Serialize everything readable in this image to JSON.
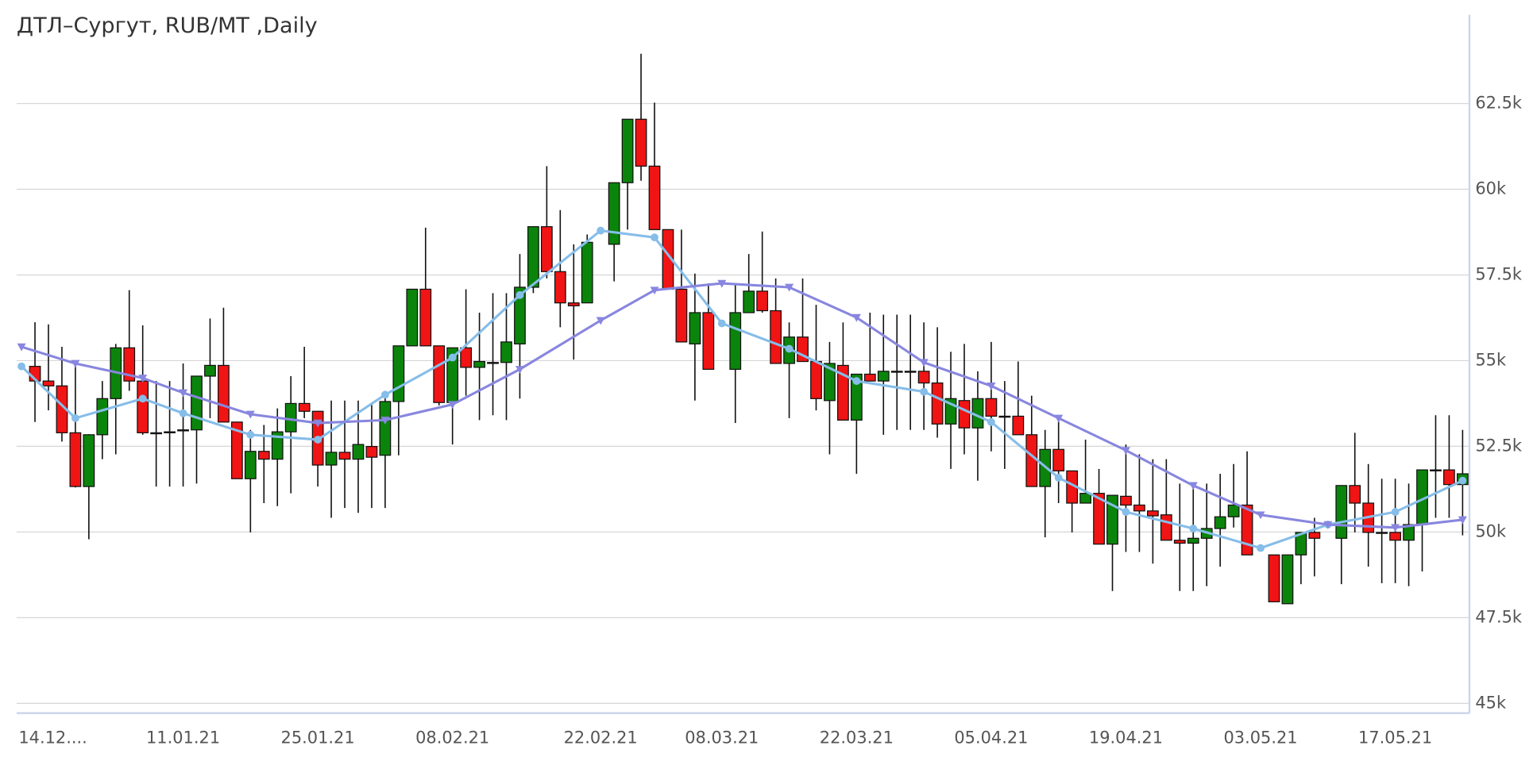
{
  "chart_data": {
    "type": "candlestick",
    "title": "ДТЛ–Сургут, RUB/MT ,Daily",
    "categories": [
      "14.12....",
      null,
      null,
      null,
      null,
      null,
      null,
      null,
      null,
      null,
      null,
      null,
      "11.01.21",
      null,
      null,
      null,
      null,
      null,
      null,
      null,
      null,
      null,
      "25.01.21",
      null,
      null,
      null,
      null,
      null,
      null,
      null,
      null,
      null,
      "08.02.21",
      null,
      null,
      null,
      null,
      null,
      null,
      null,
      null,
      null,
      null,
      "22.02.21",
      null,
      null,
      null,
      null,
      null,
      null,
      null,
      null,
      "08.03.21",
      null,
      null,
      null,
      null,
      null,
      null,
      null,
      null,
      null,
      "22.03.21",
      null,
      null,
      null,
      null,
      null,
      null,
      null,
      null,
      null,
      "05.04.21",
      null,
      null,
      null,
      null,
      null,
      null,
      null,
      null,
      null,
      "19.04.21",
      null,
      null,
      null,
      null,
      null,
      null,
      null,
      null,
      null,
      "03.05.21",
      null,
      null,
      null,
      null,
      null,
      null,
      null,
      null,
      null,
      "17.05.21",
      null,
      null,
      null,
      null,
      null
    ],
    "ylim": [
      44715,
      65092
    ],
    "yticks": [
      {
        "value": 45000,
        "label": "45k"
      },
      {
        "value": 47500,
        "label": "47.5k"
      },
      {
        "value": 50000,
        "label": "50k"
      },
      {
        "value": 52500,
        "label": "52.5k"
      },
      {
        "value": 55000,
        "label": "55k"
      },
      {
        "value": 57500,
        "label": "57.5k"
      },
      {
        "value": 60000,
        "label": "60k"
      },
      {
        "value": 62500,
        "label": "62.5k"
      }
    ],
    "grid": true,
    "series": [
      {
        "type": "candlestick",
        "up_color": "#0b840b",
        "down_color": "#f01414",
        "open": [
          null,
          54833,
          54405,
          54263,
          52895,
          51327,
          52838,
          53892,
          55374,
          54405,
          52895,
          52923,
          52980,
          52980,
          54548,
          54861,
          53208,
          51555,
          52353,
          52125,
          52923,
          53750,
          53522,
          51954,
          52325,
          52125,
          52496,
          52239,
          53807,
          55431,
          57084,
          55431,
          53778,
          55374,
          54804,
          54947,
          54947,
          55488,
          57141,
          58908,
          57597,
          56685,
          56685,
          null,
          58395,
          60191,
          62043,
          60675,
          58823,
          57084,
          55488,
          56400,
          null,
          54747,
          56400,
          57027,
          56457,
          54918,
          55688,
          54975,
          53835,
          54861,
          53265,
          54605,
          54405,
          54690,
          54690,
          54690,
          54348,
          53151,
          53835,
          53037,
          53892,
          53379,
          53379,
          52838,
          51327,
          52410,
          51783,
          50843,
          51128,
          49646,
          51042,
          50786,
          50615,
          50501,
          49760,
          49674,
          49817,
          50102,
          50444,
          50786,
          null,
          49332,
          47907,
          49332,
          49988,
          null,
          49817,
          51356,
          50843,
          49988,
          49988,
          49760,
          50216,
          51812,
          51812,
          51384
        ],
        "high": [
          null,
          56120,
          56058,
          55403,
          54833,
          52850,
          54405,
          55488,
          57056,
          56030,
          54405,
          54405,
          54918,
          54548,
          56229,
          56543,
          53208,
          52980,
          53123,
          53607,
          54548,
          55403,
          53522,
          53835,
          53835,
          53835,
          53778,
          54120,
          55431,
          57084,
          58880,
          55431,
          55374,
          57084,
          56400,
          56970,
          56970,
          58110,
          58908,
          60675,
          59393,
          58395,
          58680,
          null,
          60191,
          62043,
          63953,
          62528,
          58823,
          58823,
          57540,
          57255,
          null,
          57255,
          58110,
          58766,
          57398,
          56115,
          57398,
          56628,
          55545,
          56115,
          54605,
          56400,
          56343,
          56343,
          56343,
          56115,
          55973,
          55260,
          55488,
          54690,
          55545,
          54405,
          54975,
          53978,
          52980,
          53265,
          51783,
          52695,
          51840,
          51071,
          52553,
          52268,
          52125,
          52125,
          51413,
          51270,
          51413,
          51698,
          51983,
          52353,
          null,
          49332,
          49332,
          49988,
          50415,
          null,
          51356,
          52895,
          51983,
          51555,
          51555,
          51413,
          51812,
          53408,
          53408,
          52980
        ],
        "low": [
          null,
          53210,
          53550,
          52638,
          51300,
          49788,
          52125,
          52268,
          54120,
          52838,
          51327,
          51327,
          51327,
          51413,
          53322,
          53208,
          51555,
          49988,
          50843,
          50757,
          51128,
          53322,
          51327,
          50415,
          50700,
          50558,
          50700,
          50700,
          52239,
          55431,
          55431,
          53693,
          52553,
          53978,
          53265,
          53408,
          53265,
          53892,
          56970,
          57398,
          55973,
          55032,
          56685,
          null,
          57312,
          58823,
          60248,
          58823,
          57084,
          55545,
          53835,
          54747,
          null,
          53180,
          56400,
          56400,
          54918,
          53322,
          54975,
          53550,
          52268,
          53265,
          51698,
          54405,
          52838,
          52980,
          52980,
          52980,
          52752,
          51840,
          52268,
          51498,
          52353,
          51840,
          52838,
          51327,
          49845,
          50843,
          49988,
          50843,
          49646,
          48278,
          49418,
          49418,
          49076,
          49760,
          48278,
          48278,
          48420,
          48990,
          50130,
          49332,
          null,
          47964,
          47907,
          48477,
          48705,
          null,
          48477,
          49988,
          48990,
          48506,
          48506,
          48420,
          48848,
          50415,
          50415,
          49902
        ],
        "close": [
          null,
          54405,
          54263,
          52895,
          51327,
          52838,
          53892,
          55374,
          54405,
          52895,
          52895,
          52923,
          52980,
          54548,
          54861,
          53208,
          51555,
          52353,
          52125,
          52923,
          53750,
          53522,
          51954,
          52325,
          52125,
          52553,
          52182,
          53807,
          55431,
          57084,
          55431,
          53778,
          55374,
          54804,
          54975,
          54947,
          55545,
          57141,
          58908,
          57597,
          56685,
          56600,
          58452,
          null,
          60191,
          62043,
          60675,
          58823,
          57084,
          55545,
          56400,
          54747,
          null,
          56400,
          57027,
          56457,
          54918,
          55688,
          54975,
          53892,
          54918,
          53265,
          54605,
          54405,
          54690,
          54690,
          54690,
          54348,
          53151,
          53892,
          53037,
          53892,
          53379,
          53379,
          52838,
          51327,
          52410,
          51783,
          50843,
          51128,
          49646,
          51071,
          50786,
          50615,
          50472,
          49760,
          49674,
          49817,
          50102,
          50444,
          50786,
          49332,
          null,
          47964,
          49332,
          49988,
          49817,
          null,
          51356,
          50843,
          49988,
          49988,
          49760,
          50216,
          51812,
          51812,
          51384,
          51698
        ]
      },
      {
        "type": "line",
        "color": "#86bde9",
        "marker": "circle",
        "x": [
          0,
          4,
          9,
          12,
          17,
          22,
          27,
          32,
          37,
          43,
          47,
          52,
          57,
          62,
          67,
          72,
          77,
          82,
          87,
          92,
          97,
          102,
          107
        ],
        "values": [
          54833,
          53322,
          53892,
          53465,
          52838,
          52695,
          54006,
          55089,
          56913,
          58794,
          58595,
          56087,
          55346,
          54405,
          54092,
          53208,
          51584,
          50586,
          50102,
          49532,
          50216,
          50586,
          51498
        ]
      },
      {
        "type": "line",
        "color": "#8886df",
        "marker": "triangle",
        "x": [
          0,
          4,
          9,
          12,
          17,
          22,
          27,
          32,
          37,
          43,
          47,
          52,
          57,
          62,
          67,
          72,
          77,
          82,
          87,
          92,
          97,
          102,
          107
        ],
        "values": [
          55403,
          54918,
          54491,
          54063,
          53436,
          53180,
          53265,
          53721,
          54747,
          56172,
          57056,
          57255,
          57141,
          56258,
          54947,
          54263,
          53322,
          52382,
          51356,
          50501,
          50216,
          50130,
          50358
        ]
      }
    ]
  }
}
